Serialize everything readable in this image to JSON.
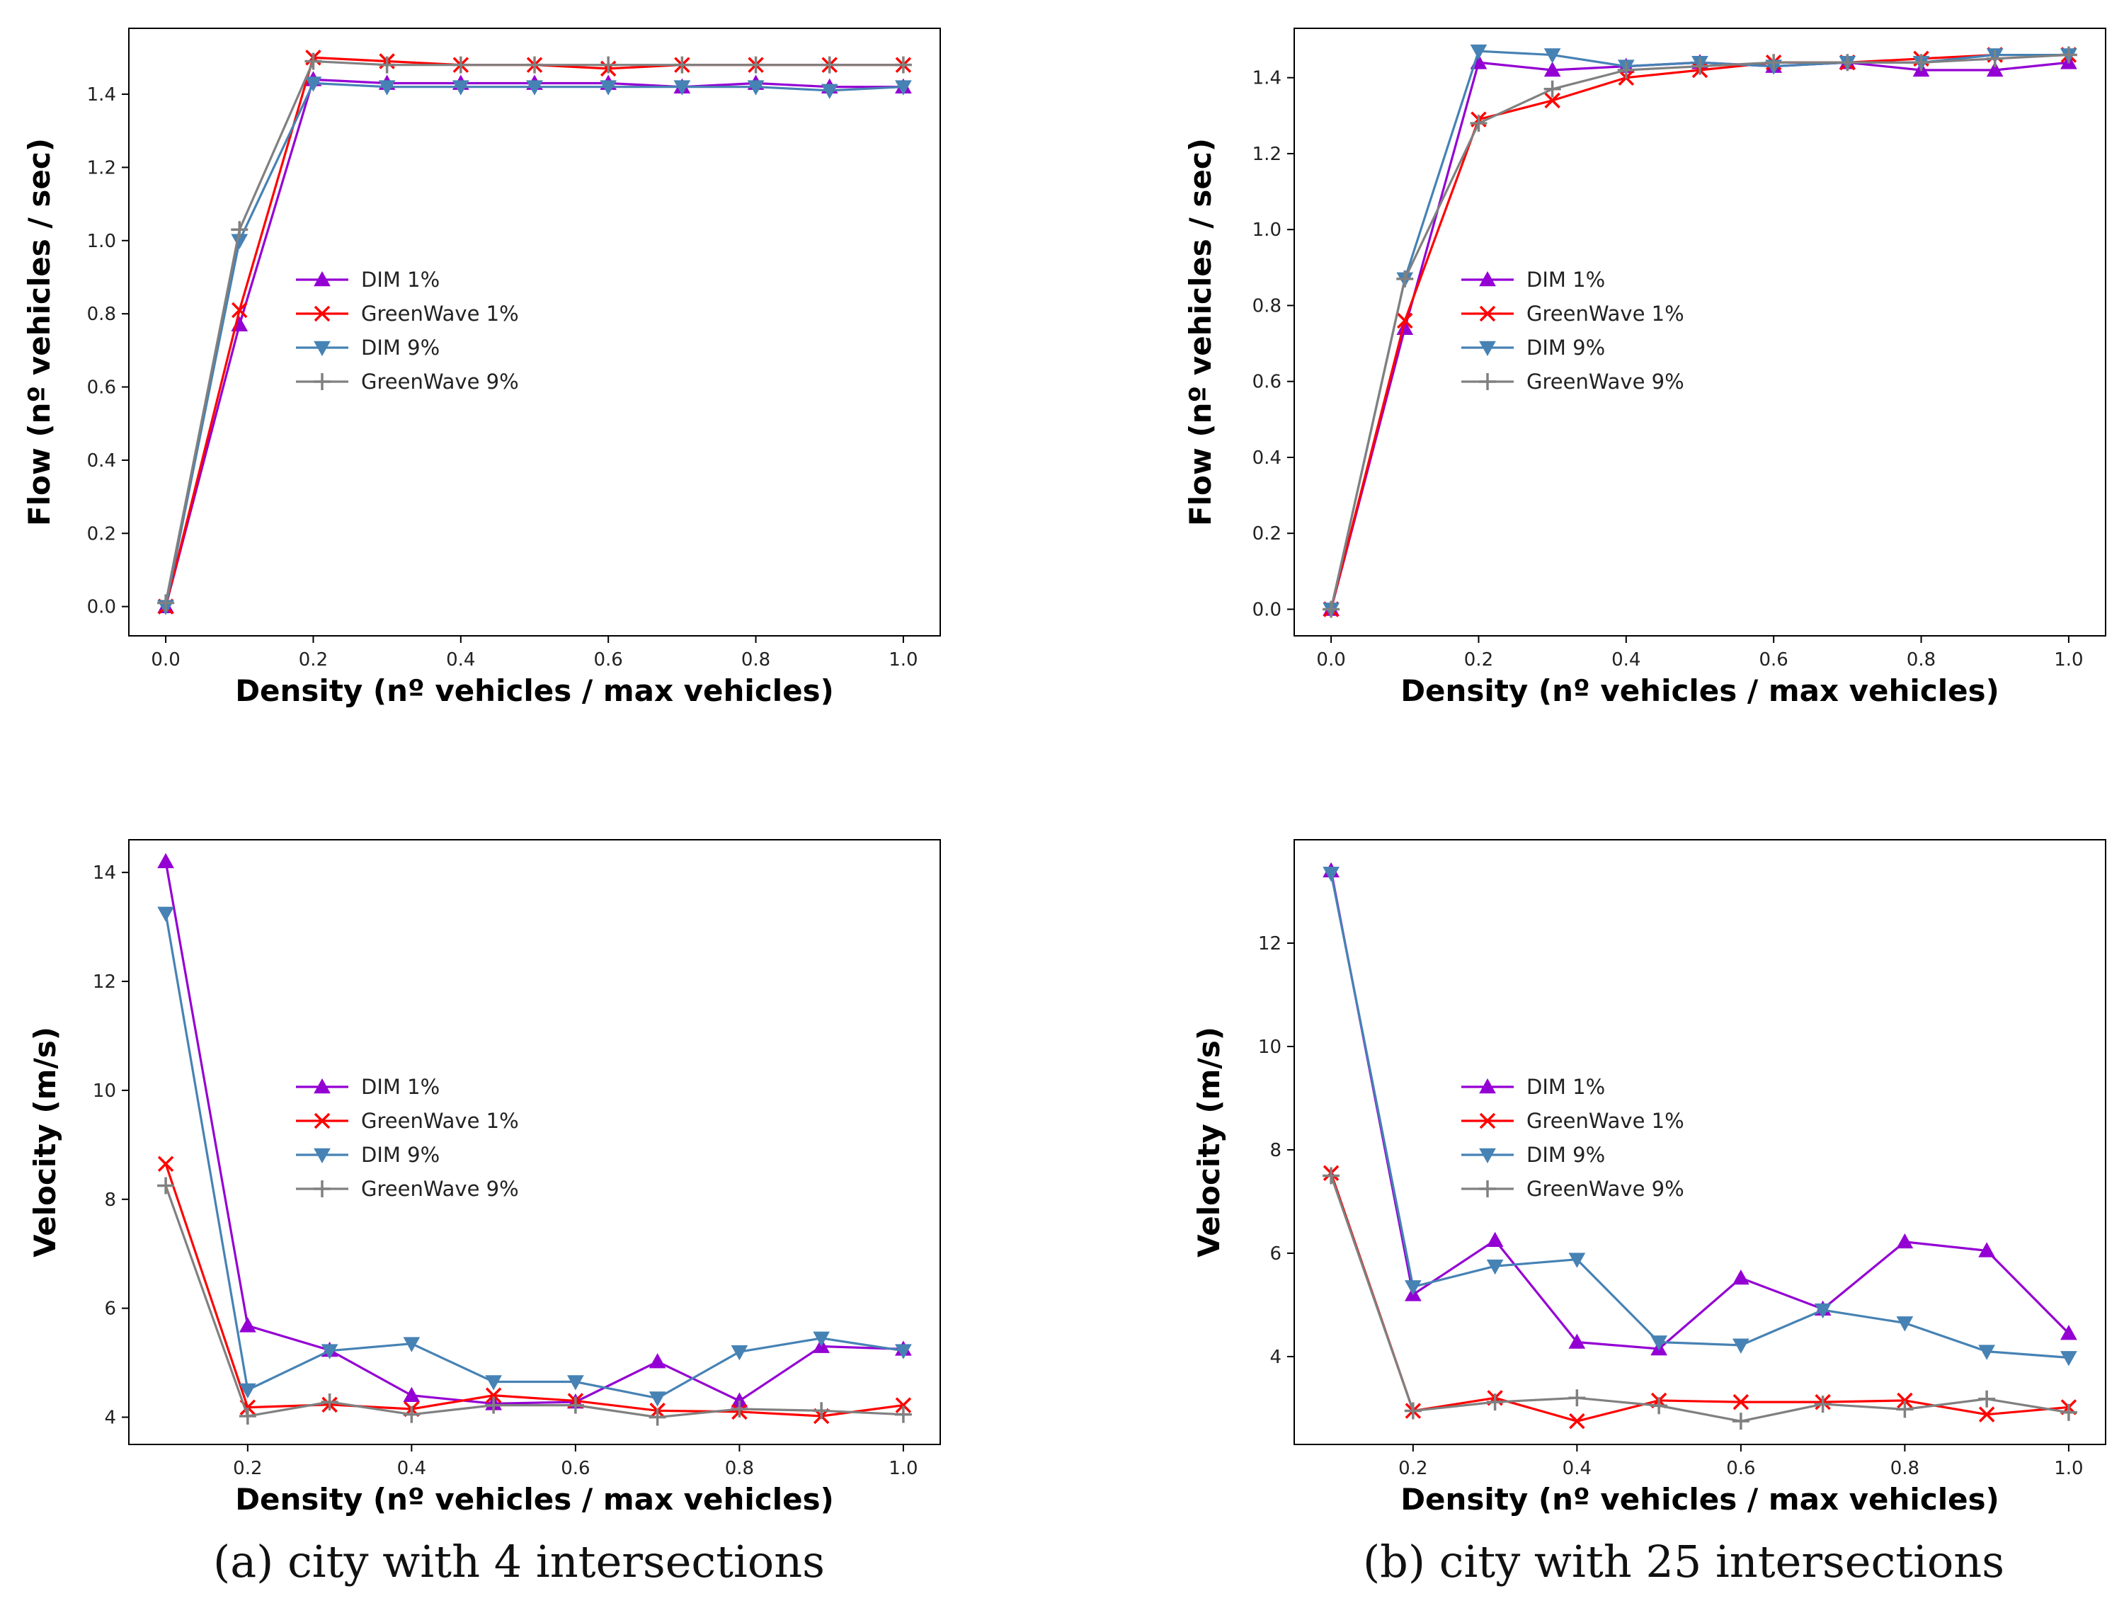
{
  "colors": {
    "dim1": "#9400D3",
    "gw1": "#FF0000",
    "dim9": "#4682B4",
    "gw9": "#808080"
  },
  "chart_data": [
    {
      "id": "a-flow",
      "type": "line",
      "xlabel": "Density (nº vehicles / max vehicles)",
      "ylabel": "Flow (nº vehicles / sec)",
      "xlim": [
        -0.05,
        1.05
      ],
      "ylim": [
        -0.08,
        1.58
      ],
      "xticks": [
        0.0,
        0.2,
        0.4,
        0.6,
        0.8,
        1.0
      ],
      "xtick_labels": [
        "0.0",
        "0.2",
        "0.4",
        "0.6",
        "0.8",
        "1.0"
      ],
      "yticks": [
        0.0,
        0.2,
        0.4,
        0.6,
        0.8,
        1.0,
        1.2,
        1.4
      ],
      "ytick_labels": [
        "0.0",
        "0.2",
        "0.4",
        "0.6",
        "0.8",
        "1.0",
        "1.2",
        "1.4"
      ],
      "legend_position": "center-left",
      "x": [
        0.0,
        0.1,
        0.2,
        0.3,
        0.4,
        0.5,
        0.6,
        0.7,
        0.8,
        0.9,
        1.0
      ],
      "series": [
        {
          "name": "DIM 1%",
          "marker": "triangle-up",
          "color": "#9400D3",
          "values": [
            0.0,
            0.77,
            1.44,
            1.43,
            1.43,
            1.43,
            1.43,
            1.42,
            1.43,
            1.42,
            1.42
          ]
        },
        {
          "name": "GreenWave 1%",
          "marker": "x",
          "color": "#FF0000",
          "values": [
            0.0,
            0.81,
            1.5,
            1.49,
            1.48,
            1.48,
            1.47,
            1.48,
            1.48,
            1.48,
            1.48
          ]
        },
        {
          "name": "DIM 9%",
          "marker": "triangle-down",
          "color": "#4682B4",
          "values": [
            0.0,
            1.0,
            1.43,
            1.42,
            1.42,
            1.42,
            1.42,
            1.42,
            1.42,
            1.41,
            1.42
          ]
        },
        {
          "name": "GreenWave 9%",
          "marker": "plus",
          "color": "#808080",
          "values": [
            0.01,
            1.03,
            1.49,
            1.48,
            1.48,
            1.48,
            1.48,
            1.48,
            1.48,
            1.48,
            1.48
          ]
        }
      ]
    },
    {
      "id": "b-flow",
      "type": "line",
      "xlabel": "Density (nº vehicles / max vehicles)",
      "ylabel": "Flow (nº vehicles / sec)",
      "xlim": [
        -0.05,
        1.05
      ],
      "ylim": [
        -0.07,
        1.53
      ],
      "xticks": [
        0.0,
        0.2,
        0.4,
        0.6,
        0.8,
        1.0
      ],
      "xtick_labels": [
        "0.0",
        "0.2",
        "0.4",
        "0.6",
        "0.8",
        "1.0"
      ],
      "yticks": [
        0.0,
        0.2,
        0.4,
        0.6,
        0.8,
        1.0,
        1.2,
        1.4
      ],
      "ytick_labels": [
        "0.0",
        "0.2",
        "0.4",
        "0.6",
        "0.8",
        "1.0",
        "1.2",
        "1.4"
      ],
      "legend_position": "center-left",
      "x": [
        0.0,
        0.1,
        0.2,
        0.3,
        0.4,
        0.5,
        0.6,
        0.7,
        0.8,
        0.9,
        1.0
      ],
      "series": [
        {
          "name": "DIM 1%",
          "marker": "triangle-up",
          "color": "#9400D3",
          "values": [
            0.0,
            0.74,
            1.44,
            1.42,
            1.43,
            1.44,
            1.43,
            1.44,
            1.42,
            1.42,
            1.44
          ]
        },
        {
          "name": "GreenWave 1%",
          "marker": "x",
          "color": "#FF0000",
          "values": [
            0.0,
            0.76,
            1.29,
            1.34,
            1.4,
            1.42,
            1.44,
            1.44,
            1.45,
            1.46,
            1.46
          ]
        },
        {
          "name": "DIM 9%",
          "marker": "triangle-down",
          "color": "#4682B4",
          "values": [
            0.0,
            0.87,
            1.47,
            1.46,
            1.43,
            1.44,
            1.43,
            1.44,
            1.44,
            1.46,
            1.46
          ]
        },
        {
          "name": "GreenWave 9%",
          "marker": "plus",
          "color": "#808080",
          "values": [
            0.0,
            0.87,
            1.28,
            1.37,
            1.42,
            1.43,
            1.44,
            1.44,
            1.44,
            1.45,
            1.46
          ]
        }
      ]
    },
    {
      "id": "a-velocity",
      "type": "line",
      "xlabel": "Density (nº vehicles / max vehicles)",
      "ylabel": "Velocity (m/s)",
      "xlim": [
        0.055,
        1.045
      ],
      "ylim": [
        3.5,
        14.6
      ],
      "xticks": [
        0.2,
        0.4,
        0.6,
        0.8,
        1.0
      ],
      "xtick_labels": [
        "0.2",
        "0.4",
        "0.6",
        "0.8",
        "1.0"
      ],
      "yticks": [
        4,
        6,
        8,
        10,
        12,
        14
      ],
      "ytick_labels": [
        "4",
        "6",
        "8",
        "10",
        "12",
        "14"
      ],
      "legend_position": "center-left",
      "x": [
        0.1,
        0.2,
        0.3,
        0.4,
        0.5,
        0.6,
        0.7,
        0.8,
        0.9,
        1.0
      ],
      "series": [
        {
          "name": "DIM 1%",
          "marker": "triangle-up",
          "color": "#9400D3",
          "values": [
            14.2,
            5.68,
            5.23,
            4.4,
            4.25,
            4.28,
            5.02,
            4.3,
            5.3,
            5.25
          ]
        },
        {
          "name": "GreenWave 1%",
          "marker": "x",
          "color": "#FF0000",
          "values": [
            8.65,
            4.18,
            4.23,
            4.15,
            4.4,
            4.3,
            4.12,
            4.1,
            4.02,
            4.22
          ]
        },
        {
          "name": "DIM 9%",
          "marker": "triangle-down",
          "color": "#4682B4",
          "values": [
            13.25,
            4.5,
            5.22,
            5.35,
            4.65,
            4.65,
            4.35,
            5.2,
            5.45,
            5.22
          ]
        },
        {
          "name": "GreenWave 9%",
          "marker": "plus",
          "color": "#808080",
          "values": [
            8.25,
            4.02,
            4.28,
            4.05,
            4.22,
            4.22,
            4.0,
            4.15,
            4.12,
            4.05
          ]
        }
      ]
    },
    {
      "id": "b-velocity",
      "type": "line",
      "xlabel": "Density (nº vehicles / max vehicles)",
      "ylabel": "Velocity (m/s)",
      "xlim": [
        0.055,
        1.045
      ],
      "ylim": [
        2.3,
        14.0
      ],
      "xticks": [
        0.2,
        0.4,
        0.6,
        0.8,
        1.0
      ],
      "xtick_labels": [
        "0.2",
        "0.4",
        "0.6",
        "0.8",
        "1.0"
      ],
      "yticks": [
        4,
        6,
        8,
        10,
        12
      ],
      "ytick_labels": [
        "4",
        "6",
        "8",
        "10",
        "12"
      ],
      "legend_position": "center-left",
      "x": [
        0.1,
        0.2,
        0.3,
        0.4,
        0.5,
        0.6,
        0.7,
        0.8,
        0.9,
        1.0
      ],
      "series": [
        {
          "name": "DIM 1%",
          "marker": "triangle-up",
          "color": "#9400D3",
          "values": [
            13.4,
            5.2,
            6.25,
            4.28,
            4.15,
            5.52,
            4.92,
            6.22,
            6.05,
            4.45
          ]
        },
        {
          "name": "GreenWave 1%",
          "marker": "x",
          "color": "#FF0000",
          "values": [
            7.55,
            2.95,
            3.2,
            2.75,
            3.15,
            3.12,
            3.12,
            3.15,
            2.88,
            3.02
          ]
        },
        {
          "name": "DIM 9%",
          "marker": "triangle-down",
          "color": "#4682B4",
          "values": [
            13.35,
            5.35,
            5.75,
            5.88,
            4.28,
            4.22,
            4.9,
            4.65,
            4.1,
            3.98
          ]
        },
        {
          "name": "GreenWave 9%",
          "marker": "plus",
          "color": "#808080",
          "values": [
            7.5,
            2.95,
            3.12,
            3.2,
            3.05,
            2.75,
            3.08,
            2.98,
            3.18,
            2.92
          ]
        }
      ]
    }
  ],
  "captions": {
    "a": "(a)  city with 4 intersections",
    "b": "(b)  city with 25 intersections"
  }
}
